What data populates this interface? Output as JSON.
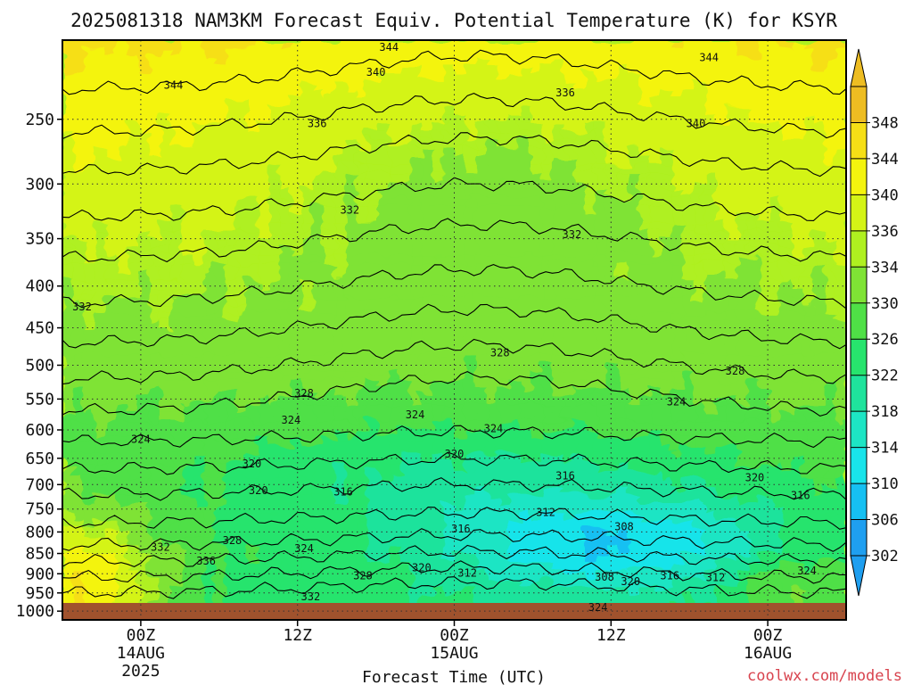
{
  "chart_data": {
    "type": "heatmap",
    "title": "2025081318 NAM3KM Forecast Equiv. Potential Temperature (K) for KSYR",
    "xlabel": "Forecast Time (UTC)",
    "ylabel": "",
    "credit": "coolwx.com/models",
    "x_ticks": [
      {
        "label": "00Z",
        "sub": [
          "14AUG",
          "2025"
        ],
        "hours": 6
      },
      {
        "label": "12Z",
        "sub": [],
        "hours": 18
      },
      {
        "label": "00Z",
        "sub": [
          "15AUG"
        ],
        "hours": 30
      },
      {
        "label": "12Z",
        "sub": [],
        "hours": 42
      },
      {
        "label": "00Z",
        "sub": [
          "16AUG"
        ],
        "hours": 54
      }
    ],
    "xlim_hours": [
      0,
      60
    ],
    "y_ticks": [
      250,
      300,
      350,
      400,
      450,
      500,
      550,
      600,
      650,
      700,
      750,
      800,
      850,
      900,
      950,
      1000
    ],
    "ylim_hPa": [
      1025,
      200
    ],
    "y_scale": "log",
    "colorbar": {
      "levels": [
        302,
        306,
        310,
        314,
        318,
        322,
        326,
        330,
        334,
        336,
        340,
        344,
        348
      ],
      "colors": [
        "#1f9ff0",
        "#16c0f2",
        "#19e4ea",
        "#1de5c4",
        "#1fe39c",
        "#27e46d",
        "#4fe046",
        "#7fe335",
        "#aff020",
        "#d4f416",
        "#f4f40e",
        "#f6df16",
        "#eebd22"
      ],
      "extend": "both"
    },
    "contour_labels": [
      {
        "text": "344",
        "hours": 25.0,
        "p": 204
      },
      {
        "text": "344",
        "hours": 49.5,
        "p": 210
      },
      {
        "text": "340",
        "hours": 24.0,
        "p": 219
      },
      {
        "text": "344",
        "hours": 8.5,
        "p": 227
      },
      {
        "text": "336",
        "hours": 38.5,
        "p": 232
      },
      {
        "text": "336",
        "hours": 19.5,
        "p": 253
      },
      {
        "text": "340",
        "hours": 48.5,
        "p": 253
      },
      {
        "text": "332",
        "hours": 22.0,
        "p": 323
      },
      {
        "text": "332",
        "hours": 39.0,
        "p": 346
      },
      {
        "text": "332",
        "hours": 1.5,
        "p": 424
      },
      {
        "text": "328",
        "hours": 33.5,
        "p": 483
      },
      {
        "text": "328",
        "hours": 51.5,
        "p": 508
      },
      {
        "text": "328",
        "hours": 18.5,
        "p": 541
      },
      {
        "text": "324",
        "hours": 47.0,
        "p": 554
      },
      {
        "text": "324",
        "hours": 27.0,
        "p": 575
      },
      {
        "text": "324",
        "hours": 17.5,
        "p": 584
      },
      {
        "text": "324",
        "hours": 33.0,
        "p": 598
      },
      {
        "text": "324",
        "hours": 6.0,
        "p": 616
      },
      {
        "text": "320",
        "hours": 30.0,
        "p": 642
      },
      {
        "text": "320",
        "hours": 14.5,
        "p": 660
      },
      {
        "text": "316",
        "hours": 38.5,
        "p": 683
      },
      {
        "text": "320",
        "hours": 53.0,
        "p": 686
      },
      {
        "text": "320",
        "hours": 15.0,
        "p": 712
      },
      {
        "text": "316",
        "hours": 21.5,
        "p": 715
      },
      {
        "text": "316",
        "hours": 56.5,
        "p": 722
      },
      {
        "text": "312",
        "hours": 37.0,
        "p": 757
      },
      {
        "text": "308",
        "hours": 43.0,
        "p": 788
      },
      {
        "text": "316",
        "hours": 30.5,
        "p": 793
      },
      {
        "text": "328",
        "hours": 13.0,
        "p": 820
      },
      {
        "text": "332",
        "hours": 7.5,
        "p": 835
      },
      {
        "text": "324",
        "hours": 18.5,
        "p": 838
      },
      {
        "text": "336",
        "hours": 11.0,
        "p": 868
      },
      {
        "text": "320",
        "hours": 27.5,
        "p": 885
      },
      {
        "text": "324",
        "hours": 57.0,
        "p": 893
      },
      {
        "text": "312",
        "hours": 31.0,
        "p": 898
      },
      {
        "text": "328",
        "hours": 23.0,
        "p": 905
      },
      {
        "text": "316",
        "hours": 46.5,
        "p": 905
      },
      {
        "text": "308",
        "hours": 41.5,
        "p": 908
      },
      {
        "text": "312",
        "hours": 50.0,
        "p": 910
      },
      {
        "text": "320",
        "hours": 43.5,
        "p": 920
      },
      {
        "text": "332",
        "hours": 19.0,
        "p": 960
      },
      {
        "text": "324",
        "hours": 41.0,
        "p": 990
      }
    ]
  }
}
